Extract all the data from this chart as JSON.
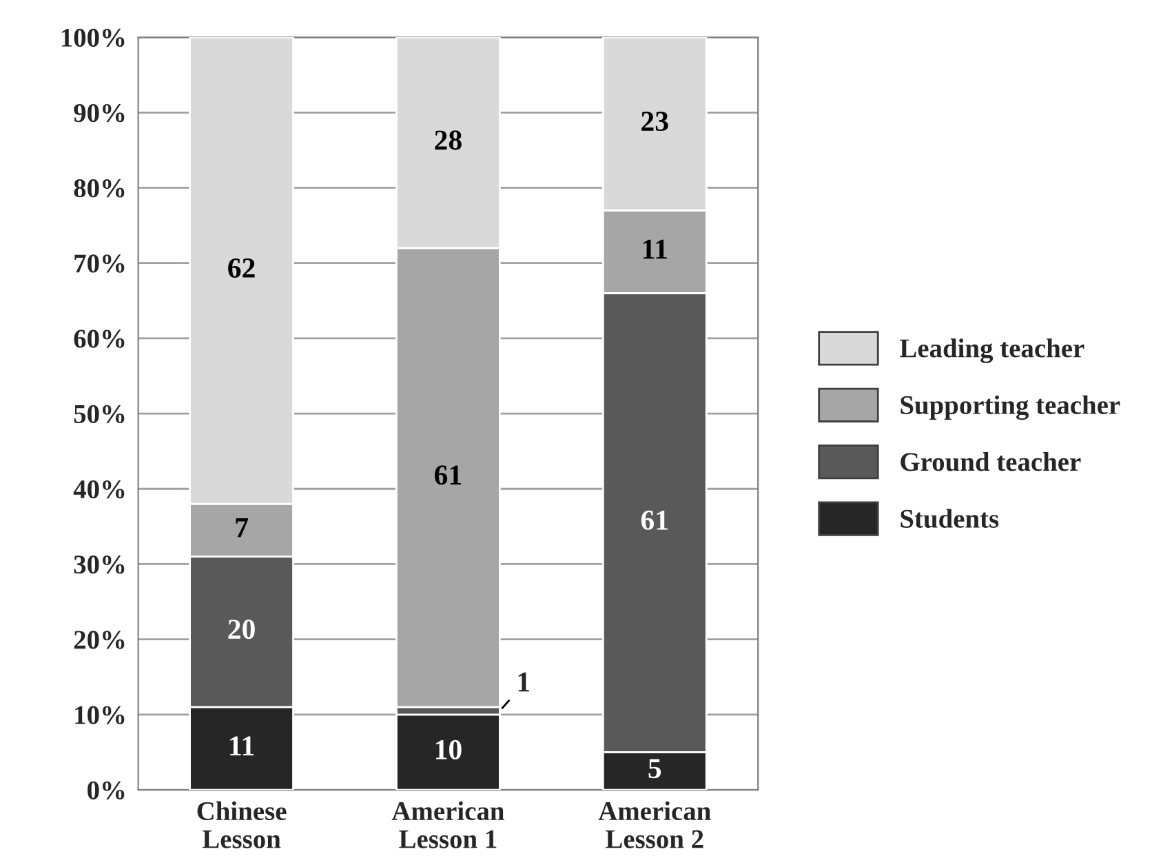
{
  "chart_data": {
    "type": "bar",
    "stacked": true,
    "categories": [
      "Chinese\nLesson",
      "American\nLesson 1",
      "American\nLesson 2"
    ],
    "series": [
      {
        "name": "Students",
        "color": "#262626",
        "values": [
          11,
          10,
          5
        ]
      },
      {
        "name": "Ground teacher",
        "color": "#595959",
        "values": [
          20,
          1,
          61
        ]
      },
      {
        "name": "Supporting teacher",
        "color": "#a6a6a6",
        "values": [
          7,
          61,
          11
        ]
      },
      {
        "name": "Leading teacher",
        "color": "#d9d9d9",
        "values": [
          62,
          28,
          23
        ]
      }
    ],
    "ylim": [
      0,
      100
    ],
    "yticks": [
      {
        "value": 0,
        "label": "0%"
      },
      {
        "value": 10,
        "label": "10%"
      },
      {
        "value": 20,
        "label": "20%"
      },
      {
        "value": 30,
        "label": "30%"
      },
      {
        "value": 40,
        "label": "40%"
      },
      {
        "value": 50,
        "label": "50%"
      },
      {
        "value": 60,
        "label": "60%"
      },
      {
        "value": 70,
        "label": "70%"
      },
      {
        "value": 80,
        "label": "80%"
      },
      {
        "value": 90,
        "label": "90%"
      },
      {
        "value": 100,
        "label": "100%"
      }
    ],
    "grid": "y",
    "legend": "right",
    "data_labels": true
  }
}
